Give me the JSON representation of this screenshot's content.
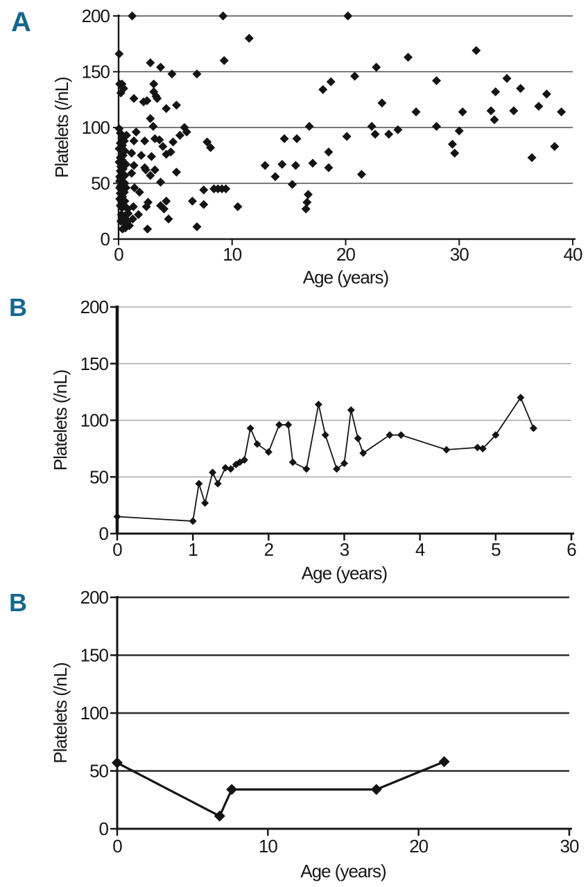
{
  "colors": {
    "accent": "#15678f",
    "marker": "#141414",
    "grid_panel_a": "#4a4a4a",
    "grid_panel_b": "#9a9a9a",
    "grid_panel_c": "#2e2e2e"
  },
  "chart_data": [
    {
      "panel_label": "A",
      "type": "scatter",
      "xlabel": "Age (years)",
      "ylabel": "Platelets (/nL)",
      "xlim": [
        0,
        40
      ],
      "ylim": [
        0,
        200
      ],
      "x_ticks": [
        0,
        10,
        20,
        30,
        40
      ],
      "y_ticks": [
        0,
        50,
        100,
        150,
        200
      ],
      "grid": true,
      "marker": "diamond",
      "legend": "none",
      "points": [
        [
          0.05,
          166
        ],
        [
          0.1,
          139
        ],
        [
          0.3,
          139
        ],
        [
          0.45,
          135
        ],
        [
          0.2,
          131
        ],
        [
          0.05,
          99
        ],
        [
          0.15,
          95
        ],
        [
          0.7,
          93
        ],
        [
          0.3,
          90
        ],
        [
          0.5,
          88
        ],
        [
          0.15,
          86
        ],
        [
          0.35,
          84
        ],
        [
          0.05,
          81
        ],
        [
          0.55,
          79
        ],
        [
          0.25,
          79
        ],
        [
          1.15,
          77
        ],
        [
          0.4,
          75
        ],
        [
          0.15,
          73
        ],
        [
          0.3,
          71
        ],
        [
          0.05,
          69
        ],
        [
          0.5,
          68
        ],
        [
          0.65,
          67
        ],
        [
          0.2,
          65
        ],
        [
          0.4,
          63
        ],
        [
          0.15,
          61
        ],
        [
          1.15,
          59
        ],
        [
          0.3,
          59
        ],
        [
          0.1,
          56
        ],
        [
          0.55,
          57
        ],
        [
          0.2,
          54
        ],
        [
          0.1,
          52
        ],
        [
          0.35,
          51
        ],
        [
          0.55,
          50
        ],
        [
          0.2,
          48
        ],
        [
          0.1,
          46
        ],
        [
          0.4,
          45
        ],
        [
          0.65,
          46
        ],
        [
          0.25,
          44
        ],
        [
          0.5,
          42
        ],
        [
          0.15,
          41
        ],
        [
          0.35,
          38
        ],
        [
          0.1,
          36
        ],
        [
          0.25,
          34
        ],
        [
          0.55,
          34
        ],
        [
          0.4,
          31
        ],
        [
          0.15,
          30
        ],
        [
          0.3,
          28
        ],
        [
          0.6,
          29
        ],
        [
          0.8,
          27
        ],
        [
          0.25,
          22
        ],
        [
          0.55,
          21
        ],
        [
          0.85,
          23
        ],
        [
          0.2,
          16
        ],
        [
          0.5,
          15
        ],
        [
          0.8,
          16
        ],
        [
          0.35,
          9
        ],
        [
          0.6,
          10
        ],
        [
          0.45,
          19
        ],
        [
          0.95,
          12
        ],
        [
          1.2,
          200
        ],
        [
          1.35,
          126
        ],
        [
          2.2,
          123
        ],
        [
          2.5,
          124
        ],
        [
          3.3,
          128
        ],
        [
          3.4,
          126
        ],
        [
          2.8,
          158
        ],
        [
          3.7,
          154
        ],
        [
          4.7,
          148
        ],
        [
          6.9,
          148
        ],
        [
          2.8,
          108
        ],
        [
          3.05,
          101
        ],
        [
          5.8,
          100
        ],
        [
          6.0,
          96
        ],
        [
          1.55,
          96
        ],
        [
          5.4,
          93
        ],
        [
          3.2,
          90
        ],
        [
          3.6,
          89
        ],
        [
          1.35,
          88
        ],
        [
          2.3,
          88
        ],
        [
          4.8,
          87
        ],
        [
          3.9,
          83
        ],
        [
          2.0,
          75
        ],
        [
          2.9,
          74
        ],
        [
          4.2,
          76
        ],
        [
          4.6,
          78
        ],
        [
          1.35,
          66
        ],
        [
          2.3,
          64
        ],
        [
          3.2,
          62
        ],
        [
          2.4,
          62
        ],
        [
          2.8,
          57
        ],
        [
          5.1,
          60
        ],
        [
          3.7,
          51
        ],
        [
          1.4,
          46
        ],
        [
          1.85,
          42
        ],
        [
          2.6,
          33
        ],
        [
          3.7,
          30
        ],
        [
          4.2,
          34
        ],
        [
          4.0,
          27
        ],
        [
          6.5,
          34
        ],
        [
          1.75,
          22
        ],
        [
          1.25,
          18
        ],
        [
          4.4,
          18
        ],
        [
          1.3,
          29
        ],
        [
          2.45,
          29
        ],
        [
          2.55,
          9
        ],
        [
          6.9,
          11
        ],
        [
          5.1,
          120
        ],
        [
          4.2,
          117
        ],
        [
          3.1,
          139
        ],
        [
          3.1,
          132
        ],
        [
          7.8,
          87
        ],
        [
          8.1,
          82
        ],
        [
          7.5,
          44
        ],
        [
          8.4,
          45
        ],
        [
          8.75,
          45
        ],
        [
          9.1,
          45
        ],
        [
          9.45,
          45
        ],
        [
          7.5,
          31
        ],
        [
          10.5,
          29
        ],
        [
          9.2,
          200
        ],
        [
          9.3,
          160
        ],
        [
          11.5,
          180
        ],
        [
          12.9,
          66
        ],
        [
          14.4,
          67
        ],
        [
          15.6,
          66
        ],
        [
          17.1,
          68
        ],
        [
          18.5,
          64
        ],
        [
          13.8,
          56
        ],
        [
          15.3,
          49
        ],
        [
          16.7,
          40
        ],
        [
          16.6,
          33
        ],
        [
          16.5,
          27
        ],
        [
          14.6,
          90
        ],
        [
          15.7,
          90
        ],
        [
          16.8,
          101
        ],
        [
          18.5,
          78
        ],
        [
          18.0,
          134
        ],
        [
          18.7,
          141
        ],
        [
          20.2,
          200
        ],
        [
          20.8,
          146
        ],
        [
          20.1,
          92
        ],
        [
          21.4,
          58
        ],
        [
          22.3,
          101
        ],
        [
          22.6,
          94
        ],
        [
          22.7,
          154
        ],
        [
          23.2,
          122
        ],
        [
          23.8,
          94
        ],
        [
          24.6,
          98
        ],
        [
          25.5,
          163
        ],
        [
          26.2,
          114
        ],
        [
          28.0,
          142
        ],
        [
          28.0,
          101
        ],
        [
          29.4,
          85
        ],
        [
          29.6,
          77
        ],
        [
          30.0,
          97
        ],
        [
          30.3,
          114
        ],
        [
          31.5,
          169
        ],
        [
          32.8,
          115
        ],
        [
          33.1,
          107
        ],
        [
          33.2,
          132
        ],
        [
          34.2,
          144
        ],
        [
          34.8,
          115
        ],
        [
          35.4,
          135
        ],
        [
          36.4,
          73
        ],
        [
          37.0,
          119
        ],
        [
          37.7,
          130
        ],
        [
          38.4,
          83
        ],
        [
          39.0,
          114
        ]
      ]
    },
    {
      "panel_label": "B",
      "type": "line",
      "xlabel": "Age (years)",
      "ylabel": "Platelets (/nL)",
      "xlim": [
        0,
        6
      ],
      "ylim": [
        0,
        200
      ],
      "x_ticks": [
        0,
        1,
        2,
        3,
        4,
        5,
        6
      ],
      "y_ticks": [
        0,
        50,
        100,
        150,
        200
      ],
      "grid": true,
      "marker": "diamond",
      "legend": "none",
      "points": [
        [
          0,
          15
        ],
        [
          1.0,
          11
        ],
        [
          1.08,
          44
        ],
        [
          1.16,
          27
        ],
        [
          1.26,
          54
        ],
        [
          1.33,
          44
        ],
        [
          1.43,
          58
        ],
        [
          1.5,
          57
        ],
        [
          1.57,
          61
        ],
        [
          1.62,
          63
        ],
        [
          1.68,
          65
        ],
        [
          1.76,
          93
        ],
        [
          1.85,
          79
        ],
        [
          2.0,
          72
        ],
        [
          2.14,
          96
        ],
        [
          2.26,
          96
        ],
        [
          2.32,
          63
        ],
        [
          2.5,
          57
        ],
        [
          2.66,
          114
        ],
        [
          2.75,
          87
        ],
        [
          2.9,
          57
        ],
        [
          3.0,
          62
        ],
        [
          3.09,
          109
        ],
        [
          3.18,
          84
        ],
        [
          3.25,
          71
        ],
        [
          3.6,
          87
        ],
        [
          3.75,
          87
        ],
        [
          4.35,
          74
        ],
        [
          4.76,
          76
        ],
        [
          4.83,
          75
        ],
        [
          5.0,
          87
        ],
        [
          5.33,
          120
        ],
        [
          5.5,
          93
        ]
      ]
    },
    {
      "panel_label": "B",
      "type": "line",
      "xlabel": "Age (years)",
      "ylabel": "Platelets (/nL)",
      "xlim": [
        0,
        30
      ],
      "ylim": [
        0,
        200
      ],
      "x_ticks": [
        0,
        10,
        20,
        30
      ],
      "y_ticks": [
        0,
        50,
        100,
        150,
        200
      ],
      "grid": true,
      "marker": "diamond",
      "legend": "none",
      "points": [
        [
          0,
          57
        ],
        [
          6.8,
          11
        ],
        [
          7.6,
          34
        ],
        [
          17.2,
          34
        ],
        [
          21.7,
          58
        ]
      ]
    }
  ]
}
